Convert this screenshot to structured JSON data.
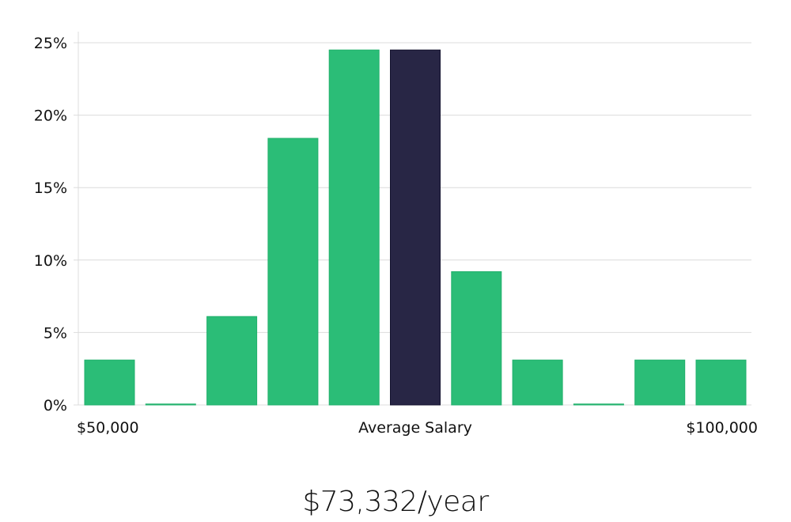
{
  "chart_data": {
    "type": "bar",
    "values": [
      3.1,
      0,
      6.1,
      18.4,
      24.5,
      24.5,
      9.2,
      3.1,
      0,
      3.1,
      3.1
    ],
    "highlight_index": 5,
    "ylim": [
      0,
      25.8
    ],
    "yticks": [
      0,
      5,
      10,
      15,
      20,
      25
    ],
    "ytick_labels": [
      "0%",
      "5%",
      "10%",
      "15%",
      "20%",
      "25%"
    ],
    "xlabel_left": "$50,000",
    "xlabel_center": "Average Salary",
    "xlabel_right": "$100,000",
    "grid": true,
    "colors": {
      "bar": "#2bbd77",
      "bar_edge": "#22b06c",
      "highlight": "#282645",
      "highlight_edge": "#14132e",
      "grid": "#dcdcdc"
    }
  },
  "summary": {
    "salary": "$73,332/year"
  }
}
